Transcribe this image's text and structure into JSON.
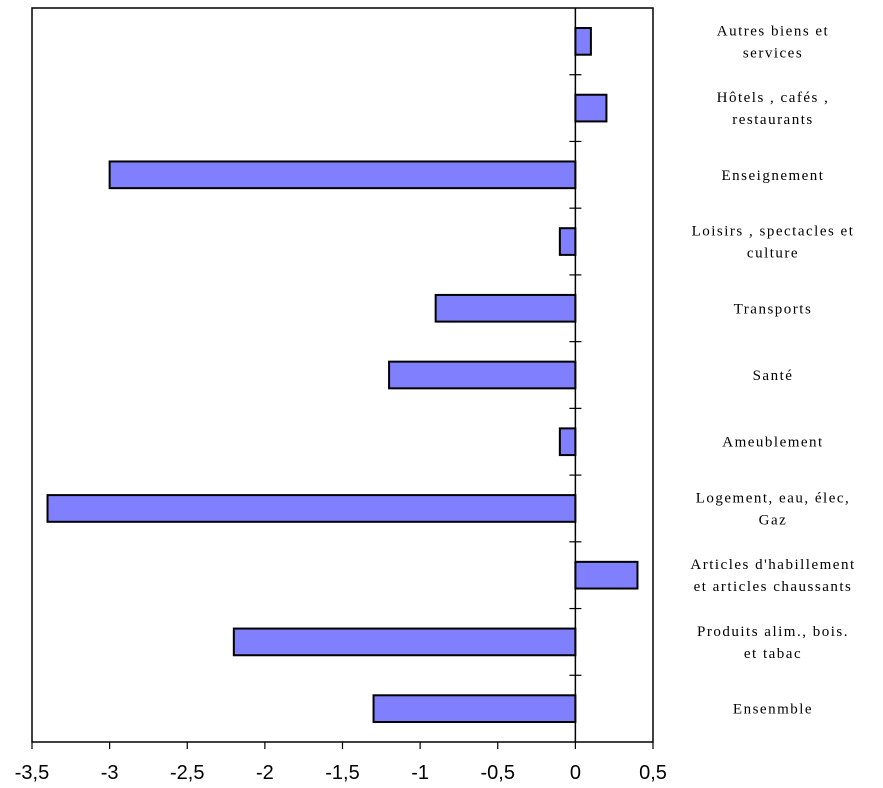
{
  "chart_data": {
    "type": "bar",
    "orientation": "horizontal",
    "categories": [
      [
        "Autres biens et",
        "services"
      ],
      [
        "Hôtels , cafés ,",
        "restaurants"
      ],
      [
        "Enseignement"
      ],
      [
        "Loisirs , spectacles et",
        "culture"
      ],
      [
        "Transports"
      ],
      [
        "Santé"
      ],
      [
        "Ameublement"
      ],
      [
        "Logement, eau, élec,",
        "Gaz"
      ],
      [
        "Articles d'habillement",
        "et articles chaussants"
      ],
      [
        "Produits alim., bois.",
        "et tabac"
      ],
      [
        "Ensenmble"
      ]
    ],
    "values": [
      0.1,
      0.2,
      -3.0,
      -0.1,
      -0.9,
      -1.2,
      -0.1,
      -3.4,
      0.4,
      -2.2,
      -1.3
    ],
    "xlim": [
      -3.5,
      0.5
    ],
    "xticks": [
      -3.5,
      -3,
      -2.5,
      -2,
      -1.5,
      -1,
      -0.5,
      0,
      0.5
    ],
    "xtick_labels": [
      "-3,5",
      "-3",
      "-2,5",
      "-2",
      "-1,5",
      "-1",
      "-0,5",
      "0",
      "0,5"
    ],
    "bar_color": "#8080ff",
    "grid": false,
    "legend": "none"
  }
}
